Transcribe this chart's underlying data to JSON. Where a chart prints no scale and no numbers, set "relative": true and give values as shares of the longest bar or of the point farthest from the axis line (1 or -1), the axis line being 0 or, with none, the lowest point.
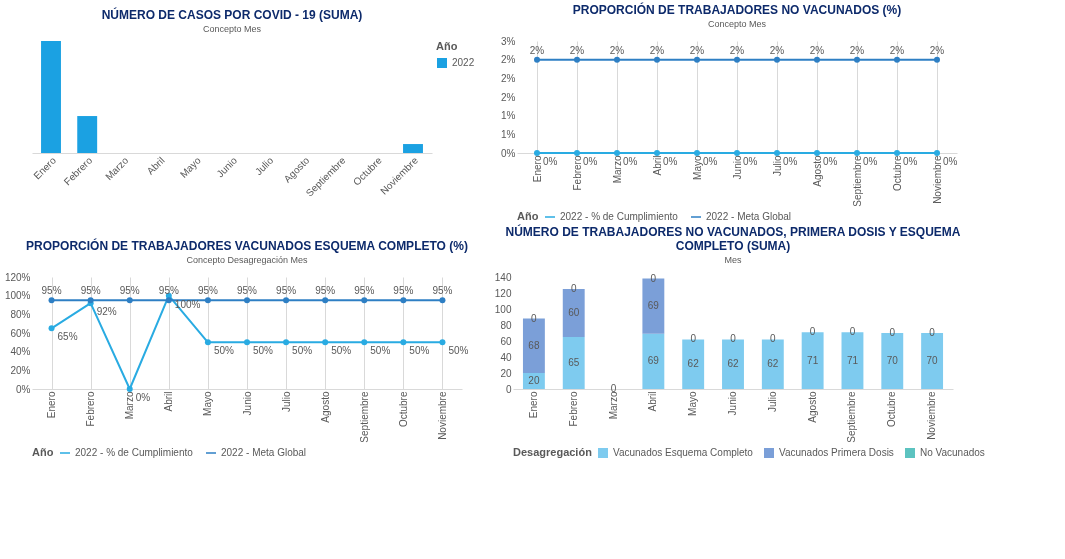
{
  "chart_data": [
    {
      "type": "bar",
      "title": "NÚMERO DE CASOS POR COVID - 19 (SUMA)",
      "relative": true,
      "categories": [
        "Enero",
        "Febrero",
        "Marzo",
        "Abril",
        "Mayo",
        "Junio",
        "Julio",
        "Agosto",
        "Septiembre",
        "Octubre",
        "Noviembre"
      ],
      "series": [
        {
          "name": "2022",
          "color": "#1ba1e2",
          "values": [
            1,
            0.33,
            null,
            null,
            null,
            null,
            null,
            null,
            null,
            null,
            0.08
          ]
        }
      ],
      "legend": "right",
      "legend_title": "Año",
      "annotations": [
        "Concepto",
        "Mes"
      ]
    },
    {
      "type": "line",
      "title": "PROPORCIÓN DE TRABAJADORES NO VACUNADOS (%)",
      "categories": [
        "Enero",
        "Febrero",
        "Marzo",
        "Abril",
        "Mayo",
        "Junio",
        "Julio",
        "Agosto",
        "Septiembre",
        "Octubre",
        "Noviembre"
      ],
      "series": [
        {
          "name": "2022 - % de Cumplimiento",
          "color": "#29abe2",
          "values": [
            0,
            0,
            0,
            0,
            0,
            0,
            0,
            0,
            0,
            0,
            0
          ],
          "value_labels": [
            "0%",
            "0%",
            "0%",
            "0%",
            "0%",
            "0%",
            "0%",
            "0%",
            "0%",
            "0%",
            "0%"
          ]
        },
        {
          "name": "2022 - Meta Global",
          "color": "#2e7fc4",
          "values": [
            2.5,
            2.5,
            2.5,
            2.5,
            2.5,
            2.5,
            2.5,
            2.5,
            2.5,
            2.5,
            2.5
          ],
          "value_labels": [
            "2%",
            "2%",
            "2%",
            "2%",
            "2%",
            "2%",
            "2%",
            "2%",
            "2%",
            "2%",
            "2%"
          ]
        }
      ],
      "ylim": [
        0,
        3
      ],
      "yticks": [
        {
          "value": 0,
          "label": "0%"
        },
        {
          "value": 0.5,
          "label": "1%"
        },
        {
          "value": 1,
          "label": "1%"
        },
        {
          "value": 1.5,
          "label": "2%"
        },
        {
          "value": 2,
          "label": "2%"
        },
        {
          "value": 2.5,
          "label": "2%"
        },
        {
          "value": 3,
          "label": "3%"
        }
      ],
      "grid": "x",
      "marker": "circle",
      "line_style": "solid",
      "legend": "bottom",
      "legend_title": "Año",
      "annotations": [
        "Concepto",
        "Mes"
      ]
    },
    {
      "type": "line",
      "title": "PROPORCIÓN DE TRABAJADORES VACUNADOS ESQUEMA COMPLETO (%)",
      "categories": [
        "Enero",
        "Febrero",
        "Marzo",
        "Abril",
        "Mayo",
        "Junio",
        "Julio",
        "Agosto",
        "Septiembre",
        "Octubre",
        "Noviembre"
      ],
      "series": [
        {
          "name": "2022 - % de Cumplimiento",
          "color": "#29abe2",
          "values": [
            65,
            92,
            0,
            100,
            50,
            50,
            50,
            50,
            50,
            50,
            50
          ],
          "value_labels": [
            "65%",
            "92%",
            "0%",
            "100%",
            "50%",
            "50%",
            "50%",
            "50%",
            "50%",
            "50%",
            "50%"
          ]
        },
        {
          "name": "2022 - Meta Global",
          "color": "#2e7fc4",
          "values": [
            95,
            95,
            95,
            95,
            95,
            95,
            95,
            95,
            95,
            95,
            95
          ],
          "value_labels": [
            "95%",
            "95%",
            "95%",
            "95%",
            "95%",
            "95%",
            "95%",
            "95%",
            "95%",
            "95%",
            "95%"
          ]
        }
      ],
      "ylim": [
        0,
        120
      ],
      "yticks": [
        {
          "value": 0,
          "label": "0%"
        },
        {
          "value": 20,
          "label": "20%"
        },
        {
          "value": 40,
          "label": "40%"
        },
        {
          "value": 60,
          "label": "60%"
        },
        {
          "value": 80,
          "label": "80%"
        },
        {
          "value": 100,
          "label": "100%"
        },
        {
          "value": 120,
          "label": "120%"
        }
      ],
      "grid": "x",
      "marker": "circle",
      "line_style": "solid",
      "legend": "bottom",
      "legend_title": "Año",
      "annotations": [
        "Concepto",
        "Desagregación",
        "Mes"
      ]
    },
    {
      "type": "bar",
      "stacked": true,
      "title": "NÚMERO DE TRABAJADORES NO VACUNADOS, PRIMERA DOSIS Y ESQUEMA COMPLETO (SUMA)",
      "categories": [
        "Enero",
        "Febrero",
        "Marzo",
        "Abril",
        "Mayo",
        "Junio",
        "Julio",
        "Agosto",
        "Septiembre",
        "Octubre",
        "Noviembre"
      ],
      "series": [
        {
          "name": "Vacunados Esquema Completo",
          "color": "#7ecbef",
          "values": [
            20,
            65,
            null,
            69,
            62,
            62,
            62,
            71,
            71,
            70,
            70
          ],
          "value_labels": [
            "20",
            "65",
            null,
            "69",
            "62",
            "62",
            "62",
            "71",
            "71",
            "70",
            "70"
          ]
        },
        {
          "name": "Vacunados Primera Dosis",
          "color": "#7b9fd8",
          "values": [
            68,
            60,
            null,
            69,
            null,
            null,
            null,
            null,
            null,
            null,
            null
          ],
          "value_labels": [
            "68",
            "60",
            null,
            "69",
            null,
            null,
            null,
            null,
            null,
            null,
            null
          ]
        },
        {
          "name": "No Vacunados",
          "color": "#5cc3c0",
          "values": [
            0,
            0,
            0,
            0,
            0,
            0,
            0,
            0,
            0,
            0,
            0
          ],
          "value_labels": [
            "0",
            "0",
            "0",
            "0",
            "0",
            "0",
            "0",
            "0",
            "0",
            "0",
            "0"
          ]
        }
      ],
      "ylim": [
        0,
        140
      ],
      "yticks": [
        0,
        20,
        40,
        60,
        80,
        100,
        120,
        140
      ],
      "grid": false,
      "legend": "bottom",
      "legend_title": "Desagregación",
      "annotations": [
        "Mes"
      ]
    }
  ]
}
